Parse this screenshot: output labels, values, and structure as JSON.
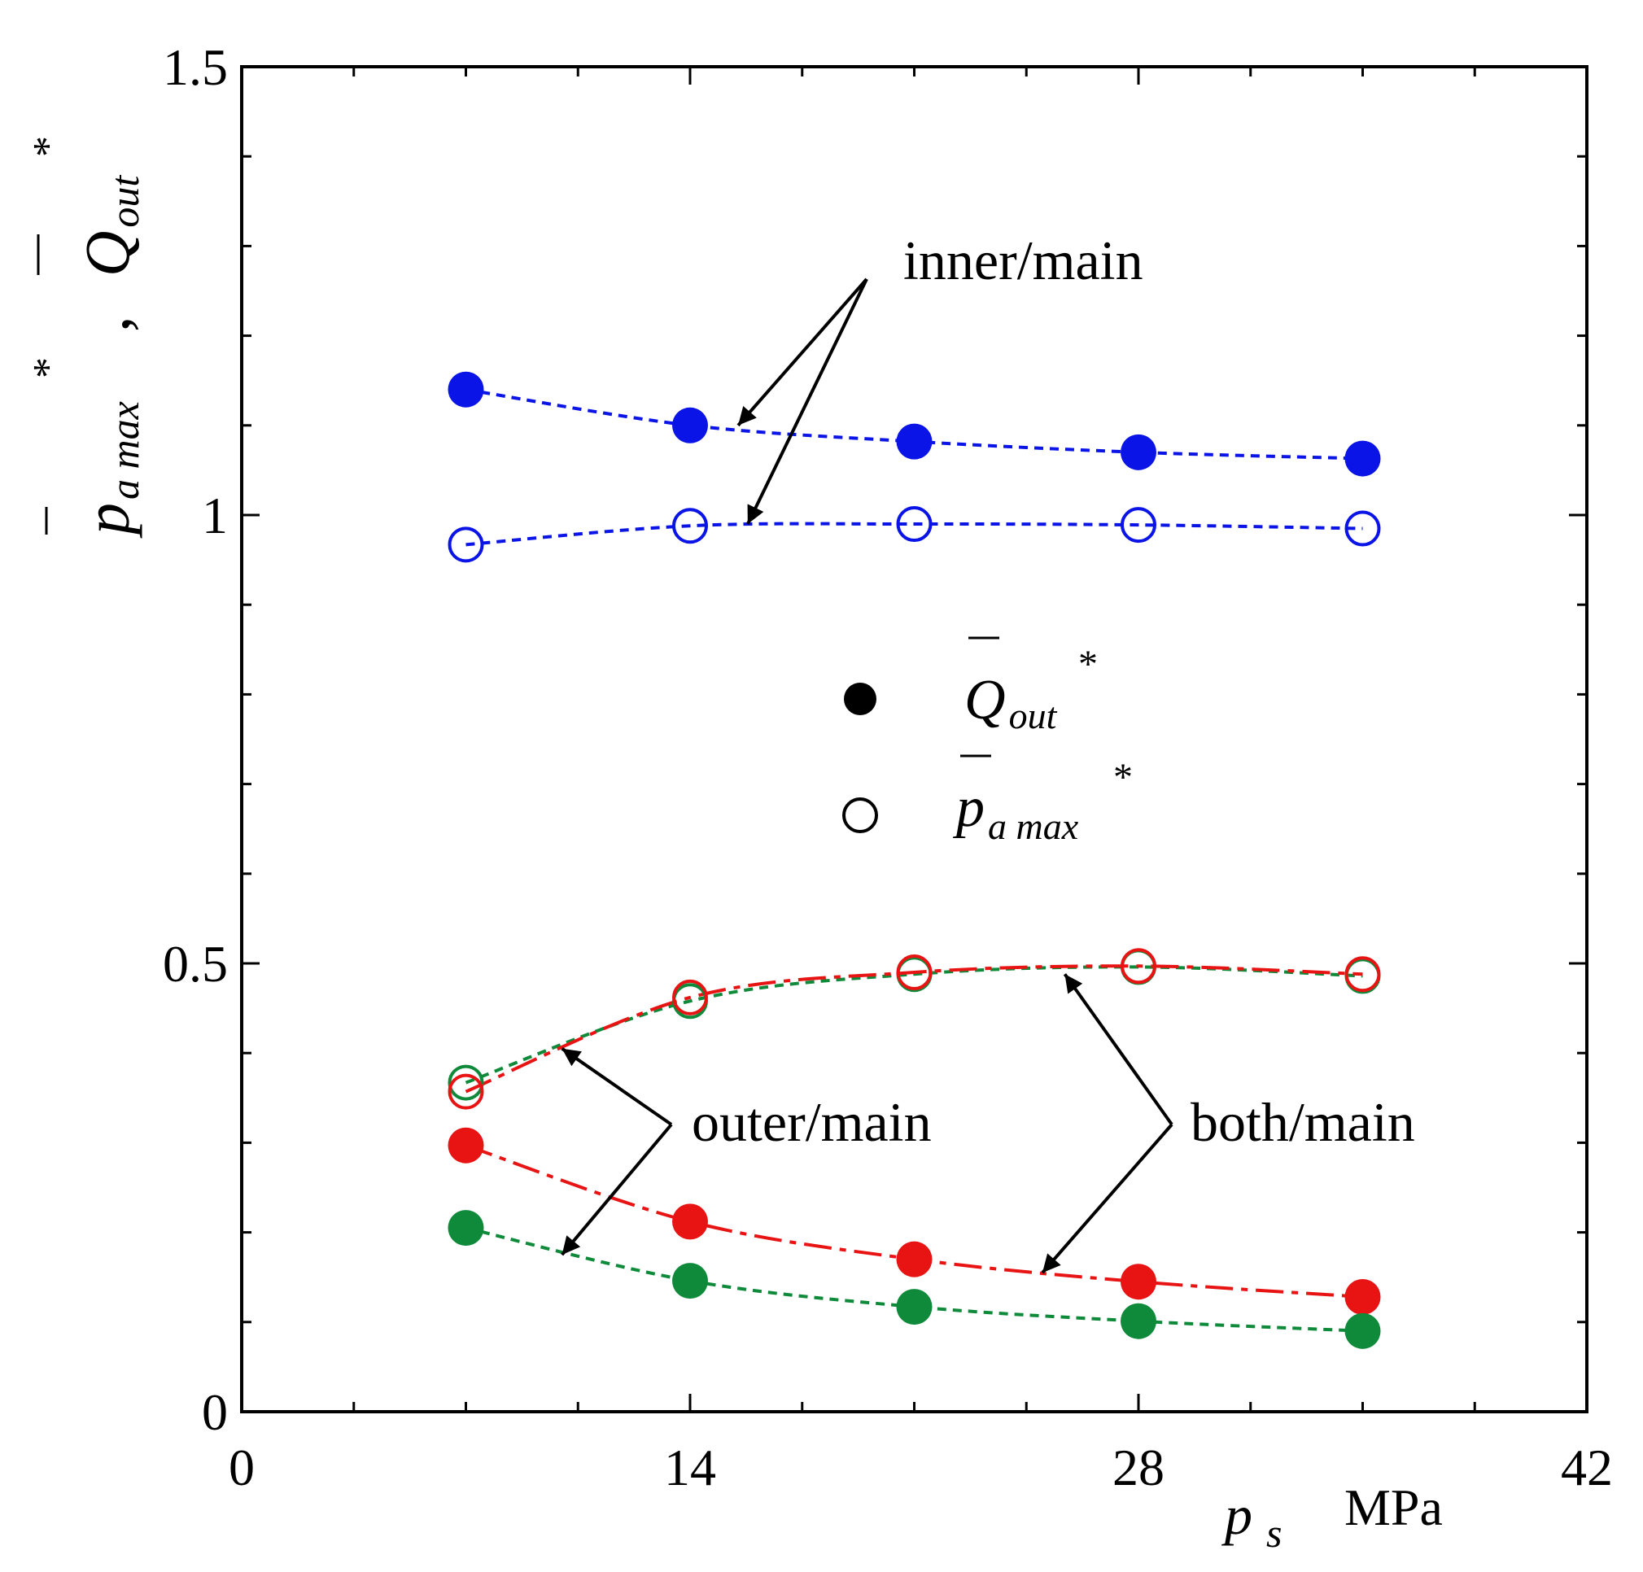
{
  "chart_data": {
    "type": "scatter",
    "xlim": [
      0,
      42
    ],
    "ylim": [
      0,
      1.5
    ],
    "xticks": [
      "0",
      "14",
      "28",
      "42"
    ],
    "yticks": [
      "0",
      "0.5",
      "1",
      "1.5"
    ],
    "xlabel": {
      "symbol": "p",
      "sub": "s",
      "unit": "MPa"
    },
    "ylabel": {
      "p": {
        "base": "p",
        "sub": "a max",
        "sup": "*"
      },
      "sep": ",",
      "q": {
        "base": "Q",
        "sub": "out",
        "sup": "*"
      }
    },
    "series": [
      {
        "name": "inner/main Q_out*",
        "group": "inner/main",
        "marker": "filled",
        "color": "#0a14e6",
        "line": "short-dash",
        "x": [
          7,
          14,
          21,
          28,
          35
        ],
        "y": [
          1.14,
          1.1,
          1.082,
          1.07,
          1.063
        ]
      },
      {
        "name": "inner/main p_a max*",
        "group": "inner/main",
        "marker": "open",
        "color": "#0a14e6",
        "line": "short-dash",
        "x": [
          7,
          14,
          21,
          28,
          35
        ],
        "y": [
          0.967,
          0.988,
          0.99,
          0.989,
          0.985
        ]
      },
      {
        "name": "outer/main p_a max*",
        "group": "outer/main",
        "marker": "open",
        "color": "#0f8a3a",
        "line": "short-dash",
        "x": [
          7,
          14,
          21,
          28,
          35
        ],
        "y": [
          0.367,
          0.458,
          0.488,
          0.496,
          0.486
        ]
      },
      {
        "name": "both/main p_a max*",
        "group": "both/main",
        "marker": "open",
        "color": "#e81414",
        "line": "long-dash",
        "x": [
          7,
          14,
          21,
          28,
          35
        ],
        "y": [
          0.357,
          0.462,
          0.49,
          0.497,
          0.488
        ]
      },
      {
        "name": "both/main Q_out*",
        "group": "both/main",
        "marker": "filled",
        "color": "#e81414",
        "line": "long-dash",
        "x": [
          7,
          14,
          21,
          28,
          35
        ],
        "y": [
          0.297,
          0.212,
          0.17,
          0.145,
          0.128
        ]
      },
      {
        "name": "outer/main Q_out*",
        "group": "outer/main",
        "marker": "filled",
        "color": "#0f8a3a",
        "line": "short-dash",
        "x": [
          7,
          14,
          21,
          28,
          35
        ],
        "y": [
          0.205,
          0.146,
          0.117,
          0.101,
          0.09
        ]
      }
    ],
    "legend": {
      "position": "center",
      "entries": [
        {
          "marker": "filled",
          "base": "Q",
          "sub": "out",
          "sup": "*"
        },
        {
          "marker": "open",
          "base": "p",
          "sub": "a max",
          "sup": "*"
        }
      ]
    },
    "annotations": [
      {
        "text": "inner/main",
        "targets": [
          {
            "x": 15.5,
            "y": 1.1
          },
          {
            "x": 15.8,
            "y": 0.99
          }
        ]
      },
      {
        "text": "outer/main",
        "targets": [
          {
            "x": 10.0,
            "y": 0.405
          },
          {
            "x": 10.0,
            "y": 0.175
          }
        ]
      },
      {
        "text": "both/main",
        "targets": [
          {
            "x": 25.7,
            "y": 0.488
          },
          {
            "x": 25.0,
            "y": 0.155
          }
        ]
      }
    ]
  }
}
